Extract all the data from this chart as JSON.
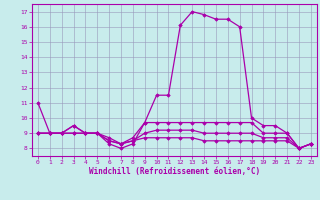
{
  "xlabel": "Windchill (Refroidissement éolien,°C)",
  "xlim": [
    -0.5,
    23.5
  ],
  "ylim": [
    7.5,
    17.5
  ],
  "yticks": [
    8,
    9,
    10,
    11,
    12,
    13,
    14,
    15,
    16,
    17
  ],
  "xticks": [
    0,
    1,
    2,
    3,
    4,
    5,
    6,
    7,
    8,
    9,
    10,
    11,
    12,
    13,
    14,
    15,
    16,
    17,
    18,
    19,
    20,
    21,
    22,
    23
  ],
  "background_color": "#c8ecec",
  "line_color": "#aa00aa",
  "grid_color": "#9999bb",
  "lines": [
    [
      11.0,
      9.0,
      9.0,
      9.5,
      9.0,
      9.0,
      8.3,
      8.0,
      8.3,
      9.7,
      11.5,
      11.5,
      16.1,
      17.0,
      16.8,
      16.5,
      16.5,
      16.0,
      10.0,
      9.5,
      9.5,
      9.0,
      8.0,
      8.3
    ],
    [
      9.0,
      9.0,
      9.0,
      9.5,
      9.0,
      9.0,
      8.7,
      8.3,
      8.7,
      9.7,
      9.7,
      9.7,
      9.7,
      9.7,
      9.7,
      9.7,
      9.7,
      9.7,
      9.7,
      9.0,
      9.0,
      9.0,
      8.0,
      8.3
    ],
    [
      9.0,
      9.0,
      9.0,
      9.0,
      9.0,
      9.0,
      8.5,
      8.3,
      8.5,
      9.0,
      9.2,
      9.2,
      9.2,
      9.2,
      9.0,
      9.0,
      9.0,
      9.0,
      9.0,
      8.7,
      8.7,
      8.7,
      8.0,
      8.3
    ],
    [
      9.0,
      9.0,
      9.0,
      9.0,
      9.0,
      9.0,
      8.5,
      8.3,
      8.5,
      8.7,
      8.7,
      8.7,
      8.7,
      8.7,
      8.5,
      8.5,
      8.5,
      8.5,
      8.5,
      8.5,
      8.5,
      8.5,
      8.0,
      8.3
    ]
  ]
}
